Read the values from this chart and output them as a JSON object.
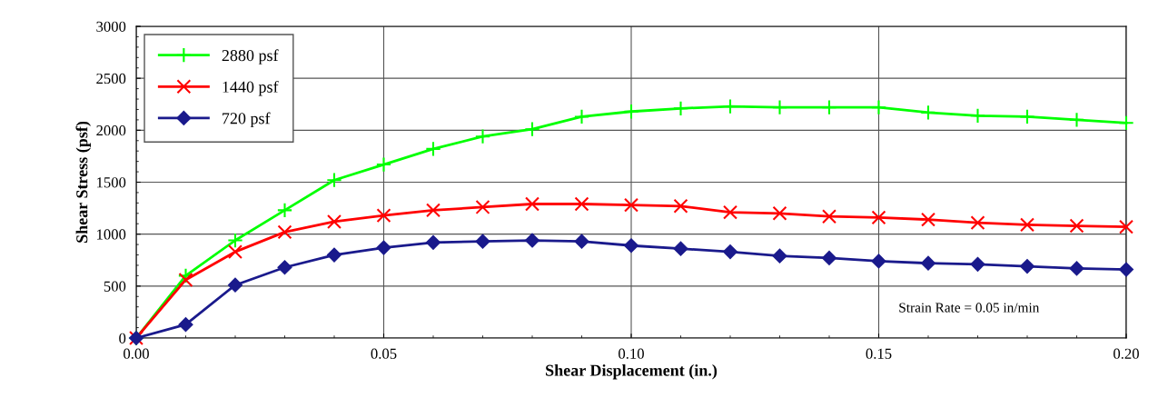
{
  "chart_data": {
    "type": "line",
    "xlabel": "Shear Displacement (in.)",
    "ylabel": "Shear Stress (psf)",
    "x": [
      0,
      0.01,
      0.02,
      0.03,
      0.04,
      0.05,
      0.06,
      0.07,
      0.08,
      0.09,
      0.1,
      0.11,
      0.12,
      0.13,
      0.14,
      0.15,
      0.16,
      0.17,
      0.18,
      0.19,
      0.2
    ],
    "series": [
      {
        "name": "2880 psf",
        "color": "#00ff00",
        "marker": "cross",
        "values": [
          0,
          600,
          940,
          1230,
          1520,
          1670,
          1820,
          1940,
          2010,
          2130,
          2180,
          2210,
          2230,
          2220,
          2220,
          2220,
          2170,
          2140,
          2130,
          2100,
          2070
        ]
      },
      {
        "name": "1440 psf",
        "color": "#ff0000",
        "marker": "x",
        "values": [
          0,
          560,
          830,
          1020,
          1120,
          1180,
          1230,
          1260,
          1290,
          1290,
          1280,
          1270,
          1210,
          1200,
          1170,
          1160,
          1140,
          1110,
          1090,
          1080,
          1070
        ]
      },
      {
        "name": "720 psf",
        "color": "#1a1a8c",
        "marker": "diamond",
        "values": [
          0,
          130,
          510,
          680,
          800,
          870,
          920,
          930,
          940,
          930,
          890,
          860,
          830,
          790,
          770,
          740,
          720,
          710,
          690,
          670,
          660
        ]
      }
    ],
    "xlim": [
      0,
      0.2
    ],
    "xticks": [
      {
        "value": 0,
        "label": "0.00"
      },
      {
        "value": 0.05,
        "label": "0.05"
      },
      {
        "value": 0.1,
        "label": "0.10"
      },
      {
        "value": 0.15,
        "label": "0.15"
      },
      {
        "value": 0.2,
        "label": "0.20"
      }
    ],
    "ylim": [
      0,
      3000
    ],
    "yticks": [
      0,
      500,
      1000,
      1500,
      2000,
      2500,
      3000
    ],
    "grid": true,
    "legend": "top left",
    "line_style": "solid",
    "annotations": [
      "Strain Rate = 0.05 in/min"
    ]
  }
}
